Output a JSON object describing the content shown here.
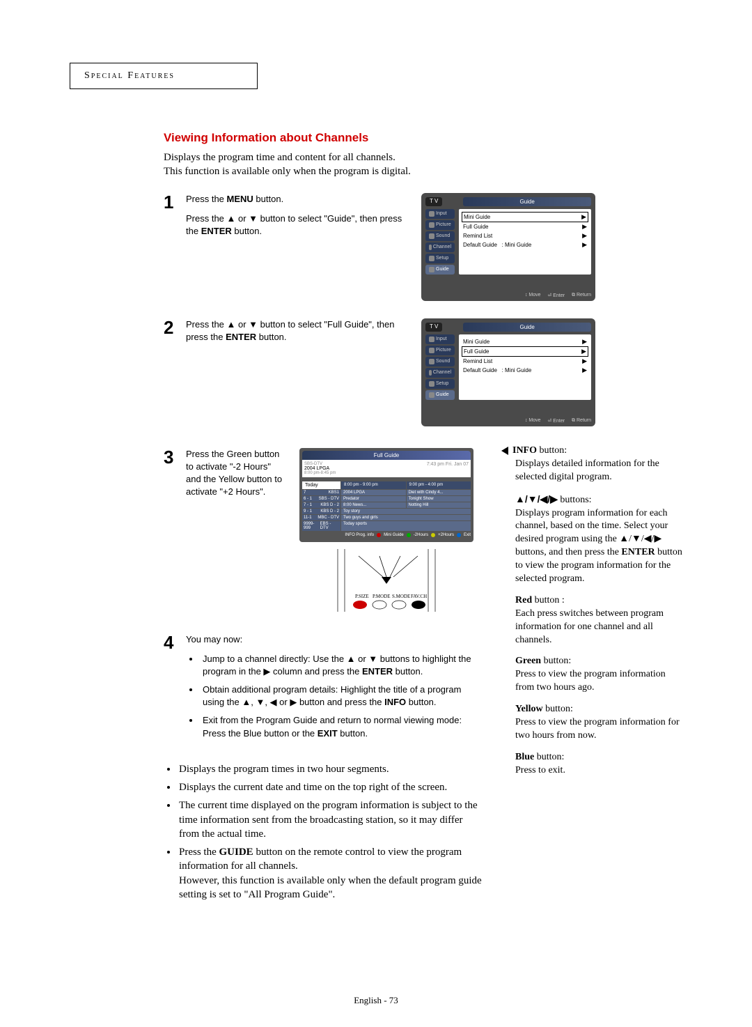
{
  "header": "Special Features",
  "title": "Viewing Information about Channels",
  "intro": [
    "Displays the program time and content for all channels.",
    "This function is available only when the program is digital."
  ],
  "steps": {
    "s1": {
      "num": "1",
      "p1a": "Press the ",
      "p1b": "MENU",
      "p1c": " button.",
      "p2a": "Press the ▲ or ▼ button to select \"Guide\", then press the ",
      "p2b": "ENTER",
      "p2c": " button."
    },
    "s2": {
      "num": "2",
      "p1a": "Press the ▲ or ▼ button to select \"Full Guide\", then press the ",
      "p1b": "ENTER",
      "p1c": " button."
    },
    "s3": {
      "num": "3",
      "p1": "Press the Green button to activate \"-2 Hours\" and the Yellow button to activate \"+2 Hours\"."
    },
    "s4": {
      "num": "4",
      "lead": "You may now:",
      "b1a": "Jump to a channel directly: Use the ▲ or ▼ buttons to highlight the program in the ▶ column and press the ",
      "b1b": "ENTER",
      "b1c": " button.",
      "b2a": "Obtain additional program details: Highlight the title of a program using the ▲, ▼, ◀ or ▶ button and press the ",
      "b2b": "INFO",
      "b2c": " button.",
      "b3a": "Exit from the Program Guide and return to normal viewing mode: Press the Blue button or the ",
      "b3b": "EXIT",
      "b3c": " button."
    }
  },
  "osd1": {
    "tv": "T V",
    "banner": "Guide",
    "tabs": [
      "Input",
      "Picture",
      "Sound",
      "Channel",
      "Setup",
      "Guide"
    ],
    "rows": [
      {
        "label": "Mini Guide",
        "hl": true,
        "arrow": "▶"
      },
      {
        "label": "Full Guide",
        "hl": false,
        "arrow": "▶"
      },
      {
        "label": "Remind List",
        "hl": false,
        "arrow": "▶"
      },
      {
        "label": "Default Guide",
        "val": ":   Mini Guide",
        "hl": false,
        "arrow": "▶"
      }
    ],
    "footer": [
      "↕ Move",
      "⏎ Enter",
      "⧉ Return"
    ]
  },
  "osd2": {
    "tv": "T V",
    "banner": "Guide",
    "tabs": [
      "Input",
      "Picture",
      "Sound",
      "Channel",
      "Setup",
      "Guide"
    ],
    "rows": [
      {
        "label": "Mini Guide",
        "hl": false,
        "arrow": "▶"
      },
      {
        "label": "Full Guide",
        "hl": true,
        "arrow": "▶"
      },
      {
        "label": "Remind List",
        "hl": false,
        "arrow": "▶"
      },
      {
        "label": "Default Guide",
        "val": ":   Mini Guide",
        "hl": false,
        "arrow": "▶"
      }
    ],
    "footer": [
      "↕ Move",
      "⏎ Enter",
      "⧉ Return"
    ]
  },
  "fullguide": {
    "header": "Full Guide",
    "info_title": "2004 LPGA",
    "info_ch": "SBS-DTV",
    "info_time": "8:00 pm-8:45 pm",
    "info_right": "7:43 pm  Fri. Jan 07",
    "today": "Today",
    "times": [
      "8:00 pm - 9:00 pm",
      "9:00 pm - 4:00 pm"
    ],
    "rows": [
      {
        "ch": "7",
        "name": "KBS1",
        "progs": [
          "2004 LPGA",
          "Diet with Cindy 4..."
        ]
      },
      {
        "ch": "6 - 1",
        "name": "SBS - DTV",
        "progs": [
          "Predator",
          "Tonight Show"
        ]
      },
      {
        "ch": "7 - 1",
        "name": "KBS D - 2",
        "progs": [
          "8:00 News...",
          "Notting Hill"
        ]
      },
      {
        "ch": "9 - 1",
        "name": "KBS D - 2",
        "progs": [
          "Toy story"
        ]
      },
      {
        "ch": "11-1",
        "name": "MBC - DTV",
        "progs": [
          "Two guys and girls"
        ]
      },
      {
        "ch": "9999-999",
        "name": "EBS - DTV",
        "progs": [
          "Today sports"
        ]
      }
    ],
    "legend": [
      "INFO Prog. info",
      "Mini Guide",
      "-2Hours",
      "+2Hours",
      "Exit"
    ],
    "remote_labels": [
      "P.SIZE",
      "P.MODE",
      "S.MODE",
      "FAV.CH"
    ]
  },
  "lower": [
    "Displays the program times in two hour segments.",
    "Displays the current date and time on the top right of the screen.",
    "The current time displayed on the program information is subject to the time information sent from the broadcasting station, so it may differ from the actual time.",
    "Press the GUIDE button on the remote control to view the program information for all channels. However, this function is available only when the default program guide setting is set to \"All Program Guide\"."
  ],
  "right": {
    "info": {
      "title": "INFO",
      "suffix": " button:",
      "body": "Displays detailed information for the selected digital program."
    },
    "nav": {
      "title": "▲/▼/◀/▶",
      "suffix": "  buttons:",
      "body1": "Displays program information for each channel, based on the time. Select your desired program using the ▲/▼/◀/▶ buttons, and then press the ",
      "body2": "ENTER",
      "body3": " button to view the program information for the selected program."
    },
    "red": {
      "title": "Red",
      "suffix": " button :",
      "body": "Each press switches between program information for one channel and all channels."
    },
    "green": {
      "title": "Green",
      "suffix": " button:",
      "body": "Press to view the program information from two hours ago."
    },
    "yellow": {
      "title": "Yellow",
      "suffix": " button:",
      "body": " Press to view the program information for two hours from now."
    },
    "blue": {
      "title": "Blue",
      "suffix": " button:",
      "body": "Press to exit."
    }
  },
  "pagenum": "English - 73"
}
